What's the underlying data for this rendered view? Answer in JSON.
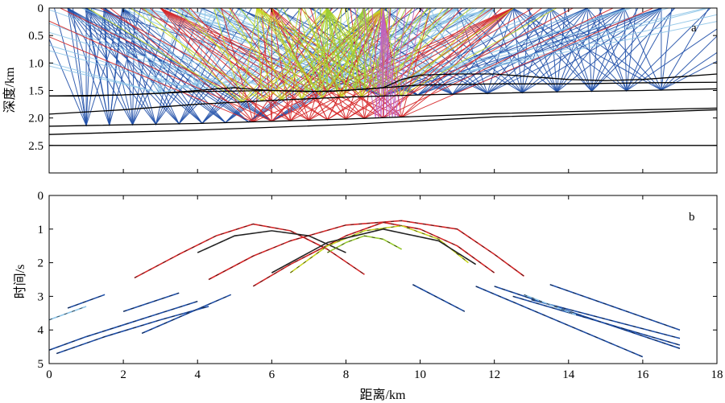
{
  "chart_data": [
    {
      "panel": "a",
      "type": "line",
      "title": "",
      "panel_label": "a",
      "xlabel": "",
      "ylabel": "深度/km",
      "xlim": [
        0,
        18
      ],
      "ylim": [
        0,
        3
      ],
      "y_inverted": true,
      "grid": false,
      "x_ticks": [
        0,
        2,
        4,
        6,
        8,
        10,
        12,
        14,
        16,
        18
      ],
      "y_ticks": [
        0,
        0.5,
        1.0,
        1.5,
        2.0,
        2.5
      ],
      "y_tick_labels": [
        "0",
        "0.5",
        "1.0",
        "1.5",
        "2.0",
        "2.5"
      ],
      "interfaces": [
        {
          "name": "",
          "color": "#000000",
          "x": [
            0,
            1.0,
            2.0,
            3.0,
            4.0,
            4.5,
            5.0,
            5.5,
            6.0,
            7.0,
            8.0,
            9.0,
            9.5,
            10.0,
            11.0,
            12.0,
            13.0,
            14.0,
            15.0,
            16.0,
            17.0,
            18.0
          ],
          "y": [
            1.6,
            1.6,
            1.58,
            1.55,
            1.5,
            1.47,
            1.45,
            1.48,
            1.5,
            1.52,
            1.5,
            1.45,
            1.3,
            1.22,
            1.2,
            1.2,
            1.25,
            1.3,
            1.32,
            1.3,
            1.25,
            1.2
          ]
        },
        {
          "name": "",
          "color": "#000000",
          "x": [
            0,
            2.0,
            4.0,
            6.0,
            7.5,
            9.0,
            10.0,
            12.0,
            14.0,
            16.0,
            18.0
          ],
          "y": [
            1.6,
            1.58,
            1.52,
            1.5,
            1.52,
            1.45,
            1.4,
            1.38,
            1.38,
            1.36,
            1.35
          ]
        },
        {
          "name": "",
          "color": "#000000",
          "x": [
            0,
            2.0,
            4.0,
            6.0,
            8.0,
            10.0,
            12.0,
            14.0,
            16.0,
            18.0
          ],
          "y": [
            1.93,
            1.85,
            1.75,
            1.68,
            1.62,
            1.58,
            1.55,
            1.52,
            1.5,
            1.47
          ]
        },
        {
          "name": "",
          "color": "#000000",
          "x": [
            0,
            4.0,
            8.0,
            12.0,
            16.0,
            18.0
          ],
          "y": [
            2.15,
            2.1,
            2.02,
            1.92,
            1.85,
            1.82
          ]
        },
        {
          "name": "",
          "color": "#000000",
          "x": [
            0,
            4.0,
            8.0,
            12.0,
            16.0,
            18.0
          ],
          "y": [
            2.3,
            2.22,
            2.12,
            1.98,
            1.9,
            1.85
          ]
        },
        {
          "name": "",
          "color": "#000000",
          "x": [
            0,
            18.0
          ],
          "y": [
            2.5,
            2.5
          ]
        }
      ],
      "ray_groups": [
        {
          "name": "",
          "color": "#1f4fa8",
          "source_x": [
            0.5,
            1.0,
            1.5,
            2.0
          ],
          "reflect_x_range": [
            1.0,
            6.0
          ]
        },
        {
          "name": "",
          "color": "#1f4fa8",
          "source_x": [
            12.5,
            13.5,
            14.5,
            15.5,
            16.5
          ],
          "reflect_x_range": [
            9.0,
            16.5
          ]
        },
        {
          "name": "",
          "color": "#8ec5e8",
          "source_x": [
            2.5,
            3.5,
            4.5,
            11.0,
            12.0
          ],
          "reflect_x_range": [
            3.0,
            11.0
          ]
        },
        {
          "name": "",
          "color": "#d62728",
          "source_x": [
            3.0,
            6.0,
            9.0,
            12.5
          ],
          "reflect_x_range": [
            5.5,
            9.5
          ]
        },
        {
          "name": "",
          "color": "#c8d820",
          "source_x": [
            5.6,
            7.5,
            9.0
          ],
          "reflect_x_range": [
            5.2,
            9.5
          ]
        },
        {
          "name": "",
          "color": "#9acd32",
          "source_x": [
            7.5,
            8.5
          ],
          "reflect_x_range": [
            7.0,
            9.0
          ]
        },
        {
          "name": "",
          "color": "#c05fc0",
          "source_x": [
            9.0
          ],
          "reflect_x_range": [
            8.8,
            9.4
          ]
        }
      ]
    },
    {
      "panel": "b",
      "type": "line",
      "title": "",
      "panel_label": "b",
      "xlabel": "距离/km",
      "ylabel": "时间/s",
      "xlim": [
        0,
        18
      ],
      "ylim": [
        0,
        5
      ],
      "y_inverted": true,
      "grid": false,
      "x_ticks": [
        0,
        2,
        4,
        6,
        8,
        10,
        12,
        14,
        16,
        18
      ],
      "y_ticks": [
        0,
        1,
        2,
        3,
        4,
        5
      ],
      "y_tick_labels": [
        "0",
        "1",
        "2",
        "3",
        "4",
        "5"
      ],
      "series": [
        {
          "name": "",
          "color": "#d62728",
          "x": [
            2.3,
            3.5,
            4.5,
            5.5,
            6.5,
            7.5,
            8.5
          ],
          "y": [
            2.45,
            1.75,
            1.2,
            0.85,
            1.05,
            1.6,
            2.35
          ]
        },
        {
          "name": "",
          "color": "#d62728",
          "x": [
            4.3,
            5.5,
            6.5,
            8.0,
            9.5,
            11.0,
            12.0,
            12.8
          ],
          "y": [
            2.5,
            1.8,
            1.35,
            0.88,
            0.75,
            1.0,
            1.75,
            2.4
          ]
        },
        {
          "name": "",
          "color": "#d62728",
          "x": [
            5.5,
            6.5,
            8.0,
            9.0,
            10.0,
            11.0,
            12.0
          ],
          "y": [
            2.7,
            2.05,
            1.2,
            0.8,
            1.0,
            1.5,
            2.3
          ]
        },
        {
          "name": "",
          "color": "#2a2a2a",
          "x": [
            4.0,
            5.0,
            6.0,
            7.0,
            8.0
          ],
          "y": [
            1.7,
            1.2,
            1.05,
            1.2,
            1.7
          ]
        },
        {
          "name": "",
          "color": "#c8d820",
          "x": [
            6.5,
            7.5,
            8.5,
            9.5,
            10.5,
            11.3
          ],
          "y": [
            2.3,
            1.5,
            1.05,
            0.9,
            1.3,
            2.0
          ]
        },
        {
          "name": "",
          "color": "#2a2a2a",
          "x": [
            6.0,
            7.5,
            9.0,
            10.5,
            11.5
          ],
          "y": [
            2.3,
            1.4,
            1.0,
            1.35,
            2.05
          ]
        },
        {
          "name": "",
          "color": "#9acd32",
          "x": [
            7.5,
            8.0,
            8.5,
            9.0,
            9.5
          ],
          "y": [
            1.7,
            1.4,
            1.2,
            1.3,
            1.6
          ]
        },
        {
          "name": "",
          "color": "#1f4fa8",
          "x": [
            0.0,
            1.0,
            2.0,
            3.0,
            4.0
          ],
          "y": [
            4.6,
            4.2,
            3.85,
            3.5,
            3.15
          ]
        },
        {
          "name": "",
          "color": "#1f4fa8",
          "x": [
            0.2,
            1.5,
            3.0,
            4.3
          ],
          "y": [
            4.7,
            4.2,
            3.7,
            3.3
          ]
        },
        {
          "name": "",
          "color": "#1f4fa8",
          "x": [
            0.5,
            1.5
          ],
          "y": [
            3.35,
            2.95
          ]
        },
        {
          "name": "",
          "color": "#8ec5e8",
          "x": [
            0.0,
            1.0
          ],
          "y": [
            3.7,
            3.3
          ]
        },
        {
          "name": "",
          "color": "#1f4fa8",
          "x": [
            2.0,
            3.5
          ],
          "y": [
            3.45,
            2.9
          ]
        },
        {
          "name": "",
          "color": "#1f4fa8",
          "x": [
            2.5,
            4.9
          ],
          "y": [
            4.1,
            2.95
          ]
        },
        {
          "name": "",
          "color": "#1f4fa8",
          "x": [
            9.8,
            11.2
          ],
          "y": [
            2.65,
            3.45
          ]
        },
        {
          "name": "",
          "color": "#1f4fa8",
          "x": [
            11.5,
            16.0
          ],
          "y": [
            2.7,
            4.8
          ]
        },
        {
          "name": "",
          "color": "#1f4fa8",
          "x": [
            12.0,
            17.0
          ],
          "y": [
            2.7,
            4.55
          ]
        },
        {
          "name": "",
          "color": "#1f4fa8",
          "x": [
            13.5,
            17.0
          ],
          "y": [
            2.65,
            4.0
          ]
        },
        {
          "name": "",
          "color": "#1f4fa8",
          "x": [
            12.5,
            17.0
          ],
          "y": [
            3.0,
            4.45
          ]
        },
        {
          "name": "",
          "color": "#1f4fa8",
          "x": [
            13.0,
            17.0
          ],
          "y": [
            3.1,
            4.25
          ]
        },
        {
          "name": "",
          "color": "#8ec5e8",
          "x": [
            12.8,
            14.2
          ],
          "y": [
            2.95,
            3.55
          ]
        }
      ]
    }
  ]
}
